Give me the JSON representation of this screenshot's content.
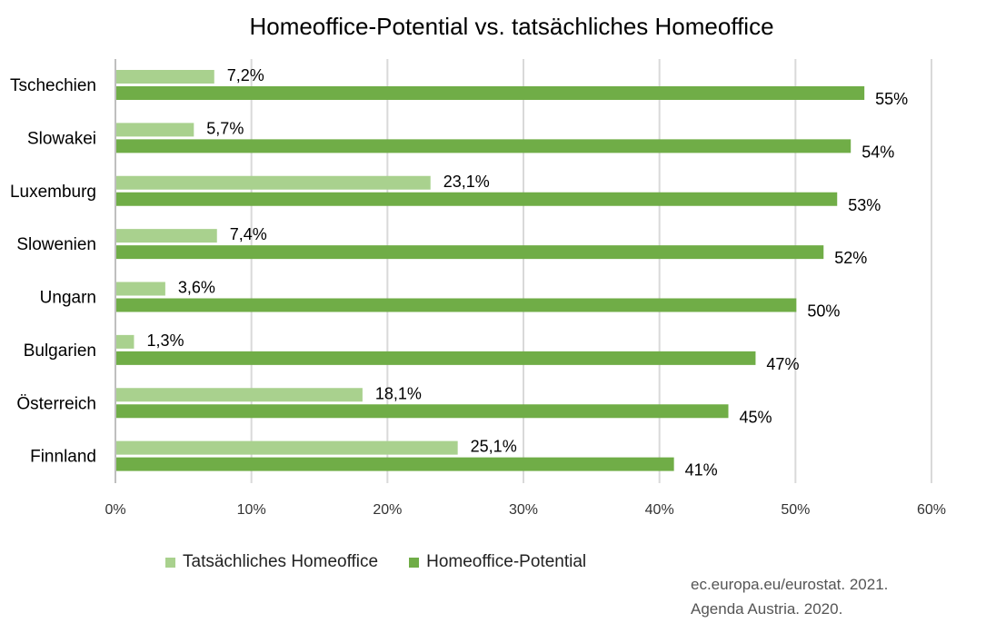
{
  "chart_data": {
    "type": "bar",
    "orientation": "horizontal",
    "title": "Homeoffice-Potential vs. tatsächliches Homeoffice",
    "categories": [
      "Tschechien",
      "Slowakei",
      "Luxemburg",
      "Slowenien",
      "Ungarn",
      "Bulgarien",
      "Österreich",
      "Finnland"
    ],
    "series": [
      {
        "name": "Tatsächliches Homeoffice",
        "color": "#a9d18e",
        "values": [
          7.2,
          5.7,
          23.1,
          7.4,
          3.6,
          1.3,
          18.1,
          25.1
        ],
        "labels": [
          "7,2%",
          "5,7%",
          "23,1%",
          "7,4%",
          "3,6%",
          "1,3%",
          "18,1%",
          "25,1%"
        ]
      },
      {
        "name": "Homeoffice-Potential",
        "color": "#70ad47",
        "values": [
          55,
          54,
          53,
          52,
          50,
          47,
          45,
          41
        ],
        "labels": [
          "55%",
          "54%",
          "53%",
          "52%",
          "50%",
          "47%",
          "45%",
          "41%"
        ]
      }
    ],
    "xlim": [
      0,
      60
    ],
    "xticks": [
      0,
      10,
      20,
      30,
      40,
      50,
      60
    ],
    "xtick_labels": [
      "0%",
      "10%",
      "20%",
      "30%",
      "40%",
      "50%",
      "60%"
    ],
    "grid": true,
    "legend_position": "bottom"
  },
  "legend": {
    "actual_label": "Tatsächliches Homeoffice",
    "potential_label": "Homeoffice-Potential"
  },
  "source": {
    "line1": "ec.europa.eu/eurostat. 2021.",
    "line2": "Agenda Austria. 2020."
  }
}
